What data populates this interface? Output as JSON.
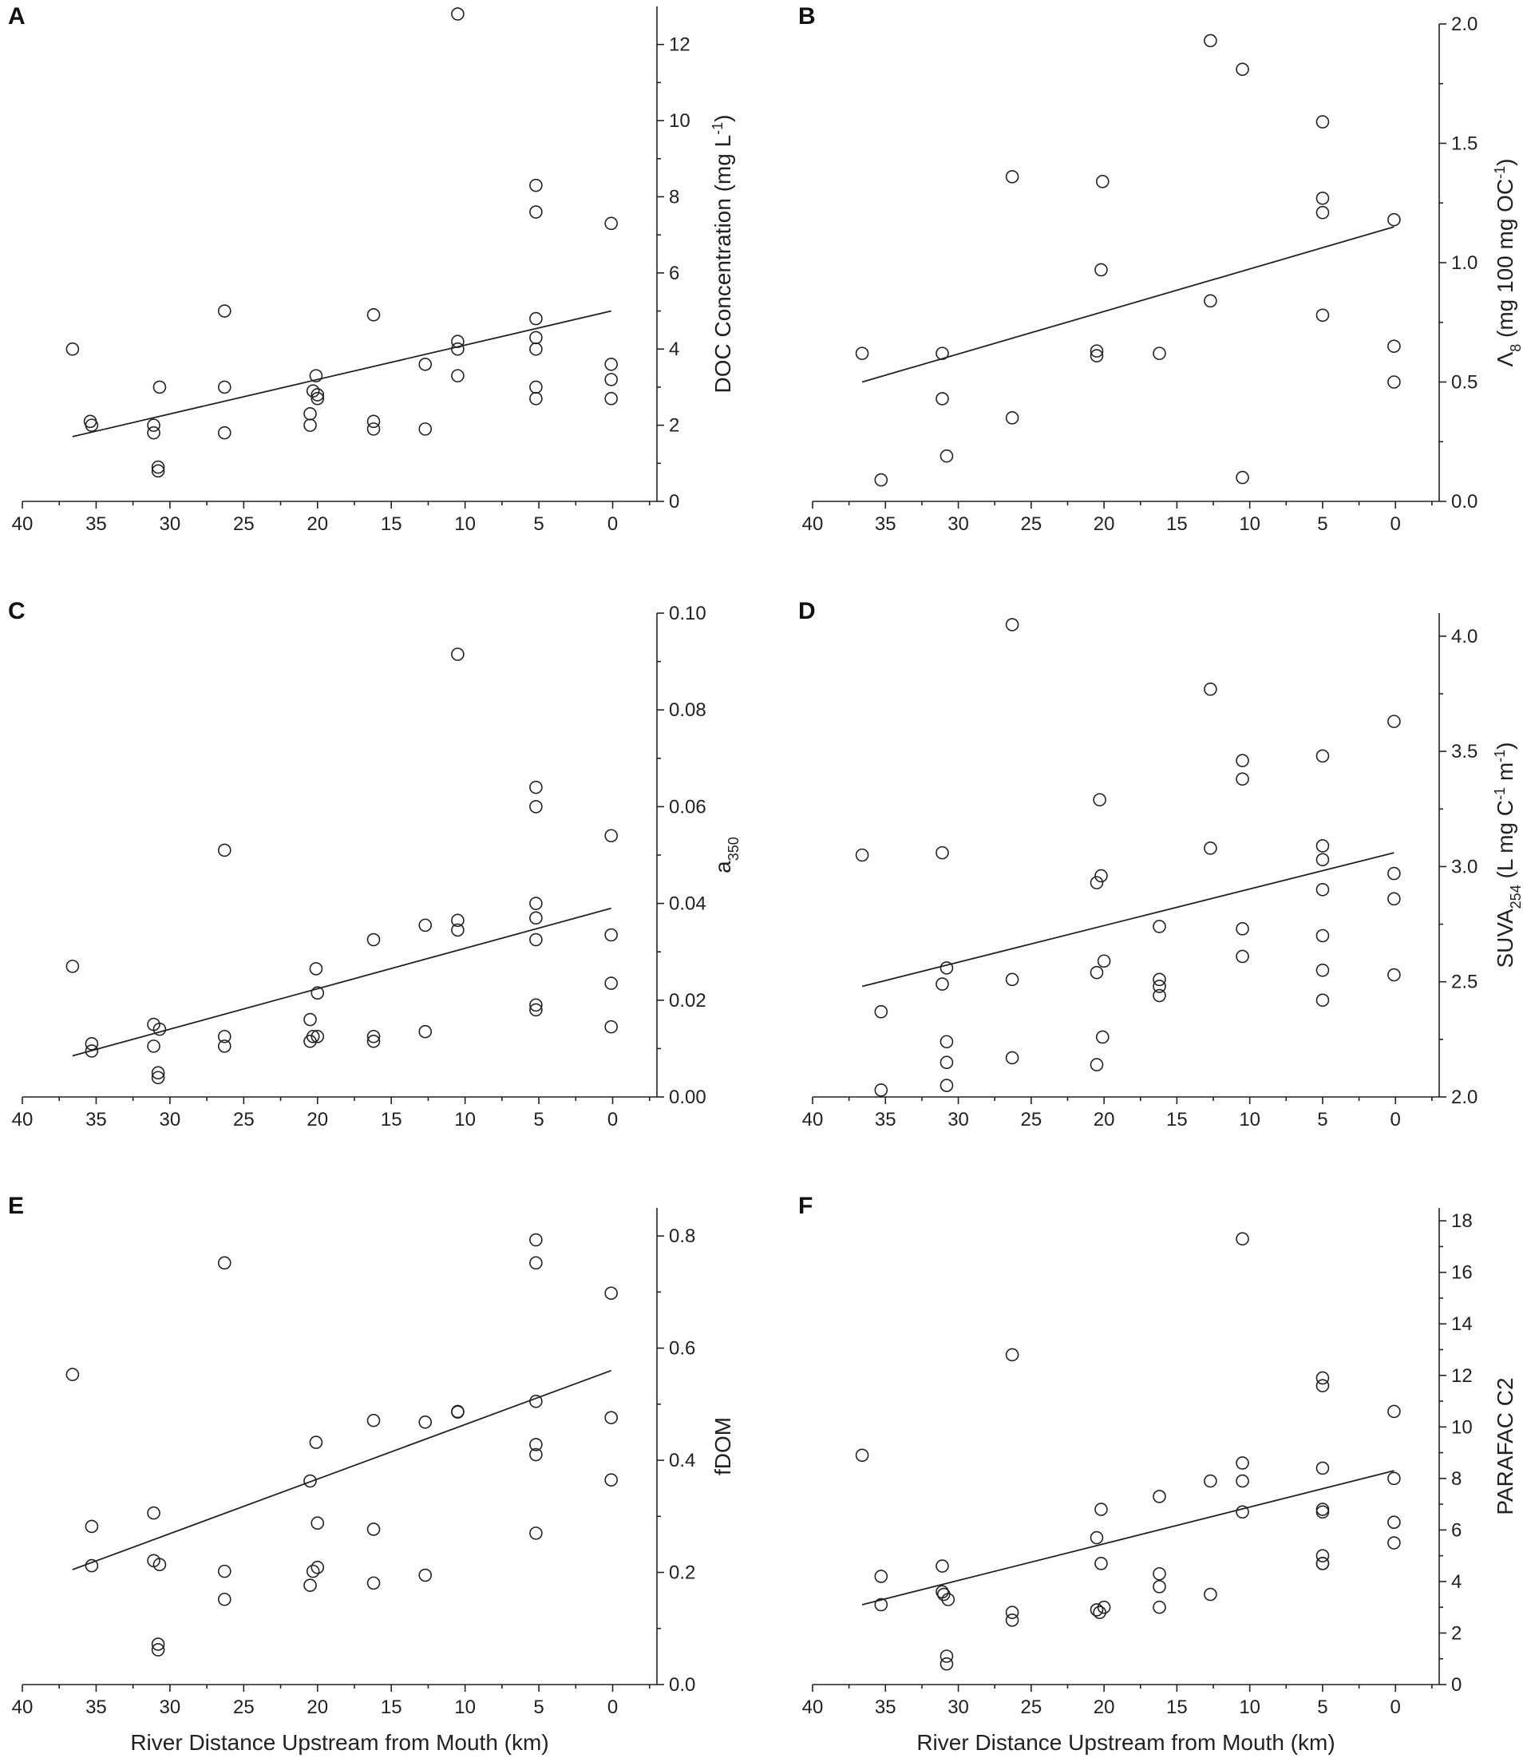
{
  "chart_data": [
    {
      "panel": "A",
      "type": "scatter",
      "xlabel": "",
      "ylabel_html": "DOC Concentration (mg L<tspan baseline-shift=\"super\" font-size=\"18\">-1</tspan>)",
      "ylabel": "DOC Concentration (mg L-1)",
      "xlim": [
        40,
        -3
      ],
      "ylim": [
        0,
        13
      ],
      "xticks": [
        40,
        35,
        30,
        25,
        20,
        15,
        10,
        5,
        0
      ],
      "yticks": [
        0,
        2,
        4,
        6,
        8,
        10,
        12
      ],
      "ytick_labels": [
        "0",
        "2",
        "4",
        "6",
        "8",
        "10",
        "12"
      ],
      "x": [
        36.6,
        35.4,
        35.3,
        31.1,
        31.1,
        30.8,
        30.8,
        30.7,
        26.3,
        26.3,
        26.3,
        20.5,
        20.5,
        20.3,
        20.1,
        20.0,
        20.0,
        16.2,
        16.2,
        16.2,
        12.7,
        12.7,
        10.5,
        10.5,
        10.5,
        10.5,
        5.2,
        5.2,
        5.2,
        5.2,
        5.2,
        5.2,
        5.2,
        0.1,
        0.1,
        0.1,
        0.1
      ],
      "y": [
        4.0,
        2.1,
        2.0,
        2.0,
        1.8,
        0.9,
        0.8,
        3.0,
        5.0,
        3.0,
        1.8,
        2.3,
        2.0,
        2.9,
        3.3,
        2.8,
        2.7,
        4.9,
        2.1,
        1.9,
        3.6,
        1.9,
        12.8,
        4.2,
        4.0,
        3.3,
        8.3,
        7.6,
        4.8,
        4.3,
        4.0,
        3.0,
        2.7,
        7.3,
        3.6,
        3.2,
        2.7
      ],
      "fit": {
        "x": [
          36.6,
          0.1
        ],
        "y": [
          1.7,
          5.0
        ]
      }
    },
    {
      "panel": "B",
      "type": "scatter",
      "xlabel": "",
      "ylabel_html": "Λ<tspan baseline-shift=\"sub\" font-size=\"18\">8</tspan> (mg 100 mg OC<tspan baseline-shift=\"super\" font-size=\"18\">-1</tspan>)",
      "ylabel": "Λ8 (mg 100 mg OC-1)",
      "xlim": [
        40,
        -3
      ],
      "ylim": [
        0,
        2.0
      ],
      "xticks": [
        40,
        35,
        30,
        25,
        20,
        15,
        10,
        5,
        0
      ],
      "yticks": [
        0,
        0.5,
        1.0,
        1.5,
        2.0
      ],
      "ytick_labels": [
        "0.0",
        "0.5",
        "1.0",
        "1.5",
        "2.0"
      ],
      "x": [
        36.6,
        35.3,
        31.1,
        31.1,
        30.8,
        26.3,
        26.3,
        20.5,
        20.5,
        20.2,
        20.1,
        16.2,
        12.7,
        12.7,
        10.5,
        10.5,
        5.0,
        5.0,
        5.0,
        5.0,
        0.1,
        0.1,
        0.1
      ],
      "y": [
        0.62,
        0.09,
        0.62,
        0.43,
        0.19,
        1.36,
        0.35,
        0.63,
        0.61,
        0.97,
        1.34,
        0.62,
        1.93,
        0.84,
        1.81,
        0.1,
        1.59,
        1.27,
        1.21,
        0.78,
        1.18,
        0.65,
        0.5
      ],
      "fit": {
        "x": [
          36.6,
          0.1
        ],
        "y": [
          0.5,
          1.15
        ]
      }
    },
    {
      "panel": "C",
      "type": "scatter",
      "xlabel": "",
      "ylabel_html": "a<tspan baseline-shift=\"sub\" font-size=\"18\">350</tspan>",
      "ylabel": "a350",
      "xlim": [
        40,
        -3
      ],
      "ylim": [
        0,
        0.1
      ],
      "xticks": [
        40,
        35,
        30,
        25,
        20,
        15,
        10,
        5,
        0
      ],
      "yticks": [
        0,
        0.02,
        0.04,
        0.06,
        0.08,
        0.1
      ],
      "ytick_labels": [
        "0.00",
        "0.02",
        "0.04",
        "0.06",
        "0.08",
        "0.10"
      ],
      "x": [
        36.6,
        35.3,
        35.3,
        31.1,
        31.1,
        30.8,
        30.8,
        30.7,
        26.3,
        26.3,
        26.3,
        20.5,
        20.5,
        20.3,
        20.1,
        20.0,
        20.0,
        16.2,
        16.2,
        16.2,
        12.7,
        12.7,
        10.5,
        10.5,
        10.5,
        5.2,
        5.2,
        5.2,
        5.2,
        5.2,
        5.2,
        5.2,
        0.1,
        0.1,
        0.1,
        0.1
      ],
      "y": [
        0.027,
        0.011,
        0.0095,
        0.015,
        0.0105,
        0.005,
        0.004,
        0.014,
        0.051,
        0.0125,
        0.0105,
        0.016,
        0.0115,
        0.0125,
        0.0265,
        0.0215,
        0.0125,
        0.0325,
        0.0125,
        0.0115,
        0.0355,
        0.0135,
        0.0915,
        0.0365,
        0.0345,
        0.064,
        0.06,
        0.04,
        0.037,
        0.0325,
        0.019,
        0.018,
        0.054,
        0.0335,
        0.0235,
        0.0145
      ],
      "fit": {
        "x": [
          36.6,
          0.1
        ],
        "y": [
          0.0085,
          0.039
        ]
      }
    },
    {
      "panel": "D",
      "type": "scatter",
      "xlabel": "",
      "ylabel_html": "SUVA<tspan baseline-shift=\"sub\" font-size=\"18\">254</tspan> (L mg C<tspan baseline-shift=\"super\" font-size=\"18\">-1</tspan> m<tspan baseline-shift=\"super\" font-size=\"18\">-1</tspan>)",
      "ylabel": "SUVA254 (L mg C-1 m-1)",
      "xlim": [
        40,
        -3
      ],
      "ylim": [
        2.0,
        4.1
      ],
      "xticks": [
        40,
        35,
        30,
        25,
        20,
        15,
        10,
        5,
        0
      ],
      "yticks": [
        2.0,
        2.5,
        3.0,
        3.5,
        4.0
      ],
      "ytick_labels": [
        "2.0",
        "2.5",
        "3.0",
        "3.5",
        "4.0"
      ],
      "x": [
        36.6,
        35.3,
        35.3,
        31.1,
        31.1,
        30.8,
        30.8,
        30.8,
        30.8,
        26.3,
        26.3,
        26.3,
        20.5,
        20.5,
        20.5,
        20.3,
        20.2,
        20.1,
        20.0,
        16.2,
        16.2,
        16.2,
        16.2,
        12.7,
        12.7,
        10.5,
        10.5,
        10.5,
        10.5,
        5.0,
        5.0,
        5.0,
        5.0,
        5.0,
        5.0,
        5.0,
        0.1,
        0.1,
        0.1,
        0.1
      ],
      "y": [
        3.05,
        2.37,
        2.03,
        3.06,
        2.49,
        2.56,
        2.24,
        2.15,
        2.05,
        4.05,
        2.17,
        2.51,
        2.93,
        2.54,
        2.14,
        3.29,
        2.96,
        2.26,
        2.59,
        2.74,
        2.51,
        2.48,
        2.44,
        3.77,
        3.08,
        3.46,
        3.38,
        2.73,
        2.61,
        3.48,
        3.09,
        3.03,
        2.9,
        2.7,
        2.55,
        2.42,
        3.63,
        2.97,
        2.86,
        2.53
      ],
      "fit": {
        "x": [
          36.6,
          0.1
        ],
        "y": [
          2.48,
          3.06
        ]
      }
    },
    {
      "panel": "E",
      "type": "scatter",
      "xlabel": "River Distance Upstream from Mouth (km)",
      "ylabel_html": "fDOM",
      "ylabel": "fDOM",
      "xlim": [
        40,
        -3
      ],
      "ylim": [
        0,
        0.85
      ],
      "xticks": [
        40,
        35,
        30,
        25,
        20,
        15,
        10,
        5,
        0
      ],
      "yticks": [
        0,
        0.2,
        0.4,
        0.6,
        0.8
      ],
      "ytick_labels": [
        "0.0",
        "0.2",
        "0.4",
        "0.6",
        "0.8"
      ],
      "x": [
        36.6,
        35.3,
        35.3,
        31.1,
        31.1,
        30.8,
        30.8,
        30.7,
        26.3,
        26.3,
        26.3,
        20.5,
        20.5,
        20.3,
        20.1,
        20.0,
        20.0,
        16.2,
        16.2,
        16.2,
        12.7,
        12.7,
        10.5,
        10.5,
        5.2,
        5.2,
        5.2,
        5.2,
        5.2,
        5.2,
        0.1,
        0.1,
        0.1
      ],
      "y": [
        0.553,
        0.282,
        0.212,
        0.306,
        0.221,
        0.072,
        0.062,
        0.214,
        0.752,
        0.202,
        0.152,
        0.363,
        0.177,
        0.202,
        0.432,
        0.288,
        0.209,
        0.471,
        0.277,
        0.181,
        0.468,
        0.195,
        0.487,
        0.486,
        0.793,
        0.752,
        0.505,
        0.428,
        0.41,
        0.27,
        0.698,
        0.476,
        0.365
      ],
      "fit": {
        "x": [
          36.6,
          0.1
        ],
        "y": [
          0.205,
          0.56
        ]
      }
    },
    {
      "panel": "F",
      "type": "scatter",
      "xlabel": "River Distance Upstream from Mouth (km)",
      "ylabel_html": "PARAFAC C2",
      "ylabel": "PARAFAC C2",
      "xlim": [
        40,
        -3
      ],
      "ylim": [
        0,
        18.5
      ],
      "xticks": [
        40,
        35,
        30,
        25,
        20,
        15,
        10,
        5,
        0
      ],
      "yticks": [
        0,
        2,
        4,
        6,
        8,
        10,
        12,
        14,
        16,
        18
      ],
      "ytick_labels": [
        "0",
        "2",
        "4",
        "6",
        "8",
        "10",
        "12",
        "14",
        "16",
        "18"
      ],
      "x": [
        36.6,
        35.3,
        35.3,
        31.1,
        31.1,
        31.0,
        30.8,
        30.8,
        30.7,
        26.3,
        26.3,
        26.3,
        20.5,
        20.5,
        20.3,
        20.2,
        20.2,
        20.0,
        16.2,
        16.2,
        16.2,
        16.2,
        12.7,
        12.7,
        10.5,
        10.5,
        10.5,
        10.5,
        5.0,
        5.0,
        5.0,
        5.0,
        5.0,
        5.0,
        5.0,
        5.0,
        0.1,
        0.1,
        0.1,
        0.1
      ],
      "y": [
        8.9,
        4.2,
        3.1,
        4.6,
        3.6,
        3.5,
        1.1,
        0.8,
        3.3,
        12.8,
        2.8,
        2.5,
        5.7,
        2.9,
        2.8,
        6.8,
        4.7,
        3.0,
        7.3,
        4.3,
        3.8,
        3.0,
        7.9,
        3.5,
        17.3,
        8.6,
        7.9,
        6.7,
        11.9,
        11.6,
        8.4,
        6.8,
        6.7,
        5.0,
        4.7,
        4.7,
        10.6,
        8.0,
        6.3,
        5.5
      ],
      "fit": {
        "x": [
          36.6,
          0.1
        ],
        "y": [
          3.1,
          8.3
        ]
      }
    }
  ]
}
